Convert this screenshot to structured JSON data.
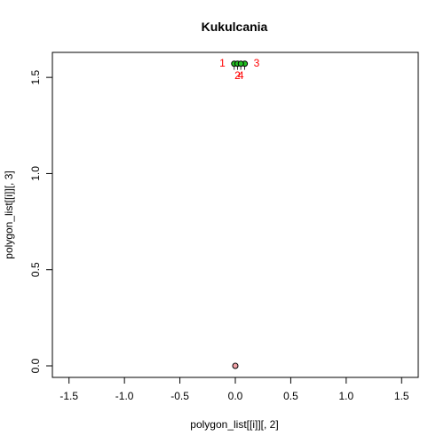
{
  "chart_data": {
    "type": "scatter",
    "title": "Kukulcania",
    "xlabel": "polygon_list[[i]][, 2]",
    "ylabel": "polygon_list[[i]][, 3]",
    "xlim": [
      -1.65,
      1.65
    ],
    "ylim": [
      -0.06,
      1.63
    ],
    "xticks": [
      -1.5,
      -1.0,
      -0.5,
      0.0,
      0.5,
      1.0,
      1.5
    ],
    "xtick_labels": [
      "-1.5",
      "-1.0",
      "-0.5",
      "0.0",
      "0.5",
      "1.0",
      "1.5"
    ],
    "yticks": [
      0.0,
      0.5,
      1.0,
      1.5
    ],
    "ytick_labels": [
      "0.0",
      "0.5",
      "1.0",
      "1.5"
    ],
    "grid": false,
    "legend": "none",
    "base_point": {
      "x": 0.0,
      "y": 0.0,
      "fill": "#f4a3a8"
    },
    "points": [
      {
        "label": "1",
        "x": -0.01,
        "y": 1.571
      },
      {
        "label": "2",
        "x": 0.02,
        "y": 1.571
      },
      {
        "label": "3",
        "x": 0.085,
        "y": 1.571
      },
      {
        "label": "4",
        "x": 0.05,
        "y": 1.571
      }
    ],
    "point_fill": "#22c222",
    "label_color": "#ff0000"
  }
}
